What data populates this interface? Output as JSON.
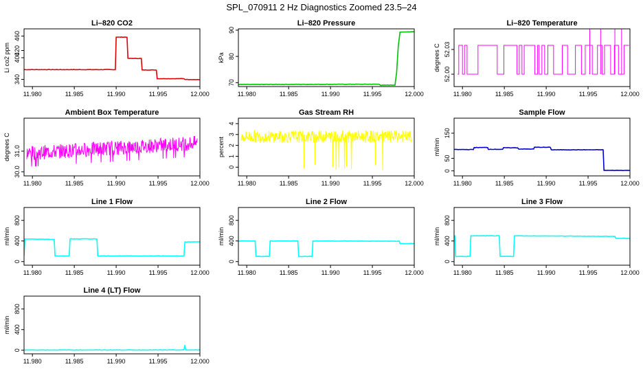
{
  "page_title": "SPL_070911  2 Hz Diagnostics Zoomed 23.5–24",
  "chart_data": [
    {
      "id": "co2",
      "type": "line",
      "title": "Li–820 CO2",
      "ylabel": "Li co2 ppm",
      "color": "#e00000",
      "xlim": [
        11.979,
        12.0
      ],
      "ylim": [
        320,
        480
      ],
      "xticks": [
        "11.980",
        "11.985",
        "11.990",
        "11.995",
        "12.000"
      ],
      "yticks": [
        "340",
        "400",
        "420",
        "460"
      ],
      "series": [
        {
          "x": [
            11.979,
            11.9899,
            11.99,
            11.9913,
            11.9914,
            11.993,
            11.9931,
            11.9948,
            11.9949,
            11.9981,
            11.9982,
            12.0
          ],
          "y": [
            367,
            367,
            457,
            457,
            398,
            398,
            366,
            366,
            342,
            342,
            340,
            339
          ]
        }
      ]
    },
    {
      "id": "pressure",
      "type": "line",
      "title": "Li–820 Pressure",
      "ylabel": "kPa",
      "color": "#00c000",
      "xlim": [
        11.979,
        12.0
      ],
      "ylim": [
        68.5,
        90.5
      ],
      "xticks": [
        "11.980",
        "11.985",
        "11.990",
        "11.995",
        "12.000"
      ],
      "yticks": [
        "70",
        "80",
        "90"
      ],
      "series": [
        {
          "x": [
            11.979,
            11.9958,
            11.996,
            11.9977,
            11.9979,
            11.9981,
            11.9983,
            12.0
          ],
          "y": [
            69.3,
            69.4,
            69.0,
            69.1,
            74,
            84,
            89.3,
            89.4
          ]
        }
      ]
    },
    {
      "id": "temperature",
      "type": "line",
      "title": "Li–820 Temperature",
      "ylabel": "degrees C",
      "color": "#ff00ff",
      "xlim": [
        11.979,
        12.0
      ],
      "ylim": [
        51.985,
        52.055
      ],
      "xticks": [
        "11.980",
        "11.985",
        "11.990",
        "11.995",
        "12.000"
      ],
      "yticks": [
        "52.00",
        "52.03"
      ],
      "series": [
        {
          "levels": [
            52.0,
            52.035
          ],
          "spike": 52.07
        }
      ]
    },
    {
      "id": "ambient",
      "type": "line",
      "title": "Ambient Box Temperature",
      "ylabel": "degrees C",
      "color": "#ff00ff",
      "xlim": [
        11.979,
        12.0
      ],
      "ylim": [
        29.8,
        32.6
      ],
      "xticks": [
        "11.980",
        "11.985",
        "11.990",
        "11.995",
        "12.000"
      ],
      "yticks": [
        "30.0",
        "31.0"
      ],
      "series": [
        {
          "start": 30.9,
          "end": 31.4,
          "noise": 0.35
        }
      ]
    },
    {
      "id": "rh",
      "type": "line",
      "title": "Gas Stream RH",
      "ylabel": "percent",
      "color": "#ffff00",
      "xlim": [
        11.979,
        12.0
      ],
      "ylim": [
        -0.8,
        4.5
      ],
      "xticks": [
        "11.980",
        "11.985",
        "11.990",
        "11.995",
        "12.000"
      ],
      "yticks": [
        "0",
        "1",
        "2",
        "3",
        "4"
      ],
      "series": [
        {
          "mean": 2.8,
          "noise": 0.55
        }
      ]
    },
    {
      "id": "sample",
      "type": "line",
      "title": "Sample Flow",
      "ylabel": "ml/min",
      "color": "#0000cc",
      "xlim": [
        11.979,
        12.0
      ],
      "ylim": [
        -20,
        210
      ],
      "xticks": [
        "11.980",
        "11.985",
        "11.990",
        "11.995",
        "12.000"
      ],
      "yticks": [
        "0",
        "50",
        "150"
      ],
      "series": [
        {
          "x": [
            11.979,
            11.9813,
            11.9814,
            11.983,
            11.9831,
            11.9848,
            11.9849,
            11.9866,
            11.9867,
            11.9885,
            11.9886,
            11.9905,
            11.9906,
            11.9968,
            11.9969,
            12.0
          ],
          "y": [
            85,
            85,
            93,
            93,
            86,
            86,
            92,
            92,
            87,
            87,
            94,
            94,
            84,
            84,
            2,
            2
          ]
        }
      ]
    },
    {
      "id": "line1",
      "type": "line",
      "title": "Line 1 Flow",
      "ylabel": "ml/min",
      "color": "#00ffff",
      "xlim": [
        11.979,
        12.0
      ],
      "ylim": [
        -70,
        1050
      ],
      "xticks": [
        "11.980",
        "11.985",
        "11.990",
        "11.995",
        "12.000"
      ],
      "yticks": [
        "0",
        "400",
        "800"
      ],
      "series": [
        {
          "x": [
            11.979,
            11.9791,
            11.9826,
            11.9827,
            11.9844,
            11.9845,
            11.9877,
            11.9878,
            11.9981,
            11.9982,
            12.0
          ],
          "y": [
            110,
            440,
            430,
            110,
            110,
            440,
            440,
            110,
            110,
            380,
            385
          ]
        }
      ]
    },
    {
      "id": "line2",
      "type": "line",
      "title": "Line 2 Flow",
      "ylabel": "ml/min",
      "color": "#00ffff",
      "xlim": [
        11.979,
        12.0
      ],
      "ylim": [
        -70,
        1050
      ],
      "xticks": [
        "11.980",
        "11.985",
        "11.990",
        "11.995",
        "12.000"
      ],
      "yticks": [
        "0",
        "400",
        "800"
      ],
      "series": [
        {
          "x": [
            11.979,
            11.981,
            11.9811,
            11.9827,
            11.9828,
            11.9861,
            11.9862,
            11.9878,
            11.9879,
            11.9982,
            11.9983,
            12.0
          ],
          "y": [
            400,
            400,
            100,
            100,
            400,
            400,
            100,
            100,
            400,
            395,
            350,
            350
          ]
        }
      ]
    },
    {
      "id": "line3",
      "type": "line",
      "title": "Line 3 Flow",
      "ylabel": "ml/min",
      "color": "#00ffff",
      "xlim": [
        11.979,
        12.0
      ],
      "ylim": [
        -70,
        1050
      ],
      "xticks": [
        "11.980",
        "11.985",
        "11.990",
        "11.995",
        "12.000"
      ],
      "yticks": [
        "0",
        "400",
        "800"
      ],
      "series": [
        {
          "x": [
            11.979,
            11.9791,
            11.9792,
            11.9809,
            11.981,
            11.9844,
            11.9845,
            11.9861,
            11.9862,
            11.9982,
            11.9983,
            12.0
          ],
          "y": [
            500,
            500,
            100,
            100,
            500,
            500,
            100,
            100,
            500,
            490,
            450,
            450
          ]
        }
      ]
    },
    {
      "id": "line4",
      "type": "line",
      "title": "Line 4 (LT) Flow",
      "ylabel": "ml/min",
      "color": "#00ffff",
      "xlim": [
        11.979,
        12.0
      ],
      "ylim": [
        -70,
        1050
      ],
      "xticks": [
        "11.980",
        "11.985",
        "11.990",
        "11.995",
        "12.000"
      ],
      "yticks": [
        "0",
        "400",
        "800"
      ],
      "series": [
        {
          "x": [
            11.979,
            11.9981,
            11.9982,
            11.9983,
            12.0
          ],
          "y": [
            5,
            5,
            100,
            5,
            5
          ]
        }
      ]
    }
  ]
}
